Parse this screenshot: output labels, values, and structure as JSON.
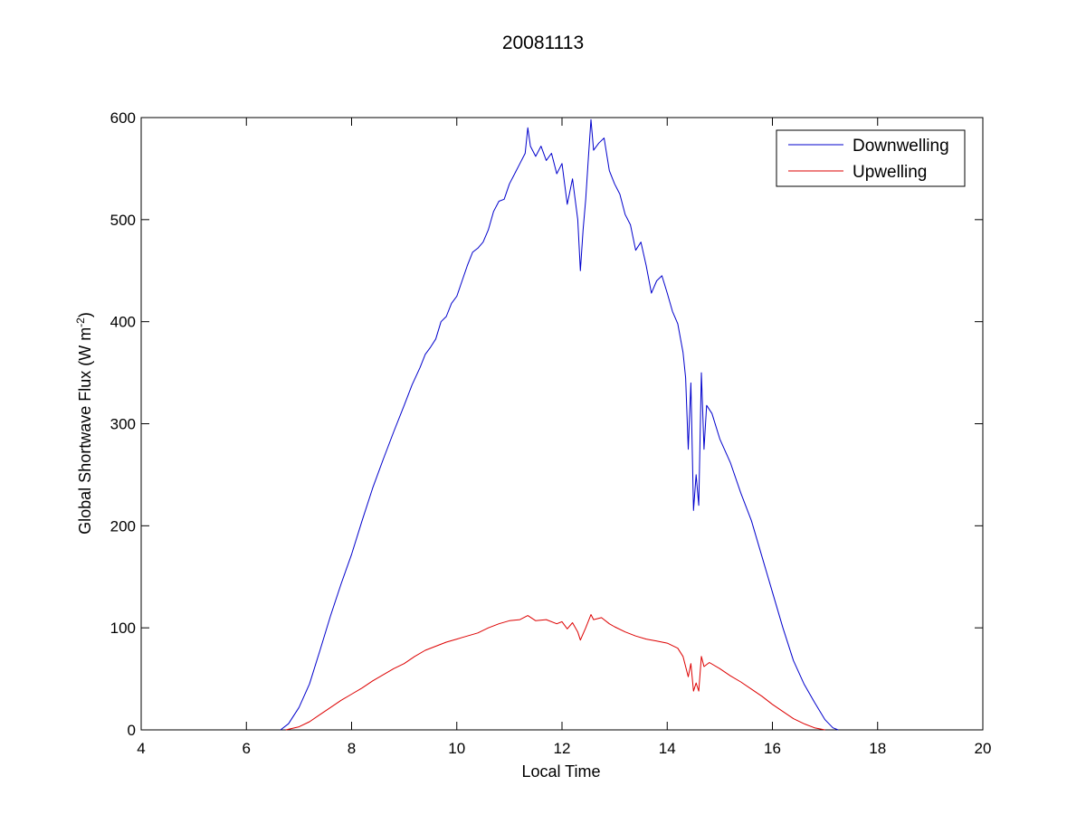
{
  "chart_data": {
    "type": "line",
    "title": "20081113",
    "xlabel": "Local Time",
    "ylabel": {
      "main": "Global Shortwave Flux (W m",
      "superscript": "-2",
      "close": ")"
    },
    "xlim": [
      4,
      20
    ],
    "ylim": [
      0,
      600
    ],
    "xticks": [
      4,
      6,
      8,
      10,
      12,
      14,
      16,
      18,
      20
    ],
    "yticks": [
      0,
      100,
      200,
      300,
      400,
      500,
      600
    ],
    "grid": false,
    "legend_position": "top-right",
    "series": [
      {
        "name": "Downwelling",
        "color": "#0000cc",
        "points": [
          [
            6.65,
            0
          ],
          [
            6.8,
            6
          ],
          [
            7.0,
            22
          ],
          [
            7.2,
            45
          ],
          [
            7.4,
            78
          ],
          [
            7.6,
            112
          ],
          [
            7.8,
            143
          ],
          [
            8.0,
            172
          ],
          [
            8.2,
            205
          ],
          [
            8.4,
            237
          ],
          [
            8.6,
            265
          ],
          [
            8.8,
            292
          ],
          [
            9.0,
            318
          ],
          [
            9.15,
            338
          ],
          [
            9.3,
            355
          ],
          [
            9.4,
            368
          ],
          [
            9.5,
            375
          ],
          [
            9.6,
            383
          ],
          [
            9.7,
            400
          ],
          [
            9.8,
            405
          ],
          [
            9.9,
            418
          ],
          [
            10.0,
            425
          ],
          [
            10.1,
            440
          ],
          [
            10.2,
            455
          ],
          [
            10.3,
            468
          ],
          [
            10.4,
            472
          ],
          [
            10.5,
            478
          ],
          [
            10.6,
            490
          ],
          [
            10.7,
            508
          ],
          [
            10.8,
            518
          ],
          [
            10.9,
            520
          ],
          [
            11.0,
            535
          ],
          [
            11.1,
            545
          ],
          [
            11.2,
            555
          ],
          [
            11.3,
            565
          ],
          [
            11.35,
            590
          ],
          [
            11.4,
            572
          ],
          [
            11.5,
            562
          ],
          [
            11.6,
            572
          ],
          [
            11.7,
            558
          ],
          [
            11.8,
            565
          ],
          [
            11.9,
            545
          ],
          [
            12.0,
            555
          ],
          [
            12.1,
            515
          ],
          [
            12.2,
            540
          ],
          [
            12.3,
            500
          ],
          [
            12.35,
            450
          ],
          [
            12.4,
            490
          ],
          [
            12.45,
            520
          ],
          [
            12.5,
            560
          ],
          [
            12.55,
            598
          ],
          [
            12.6,
            568
          ],
          [
            12.7,
            575
          ],
          [
            12.8,
            580
          ],
          [
            12.9,
            548
          ],
          [
            13.0,
            535
          ],
          [
            13.1,
            525
          ],
          [
            13.2,
            505
          ],
          [
            13.3,
            495
          ],
          [
            13.4,
            470
          ],
          [
            13.5,
            478
          ],
          [
            13.6,
            455
          ],
          [
            13.7,
            428
          ],
          [
            13.8,
            440
          ],
          [
            13.9,
            445
          ],
          [
            14.0,
            428
          ],
          [
            14.1,
            410
          ],
          [
            14.2,
            398
          ],
          [
            14.3,
            370
          ],
          [
            14.35,
            345
          ],
          [
            14.4,
            275
          ],
          [
            14.45,
            340
          ],
          [
            14.5,
            215
          ],
          [
            14.55,
            250
          ],
          [
            14.6,
            220
          ],
          [
            14.65,
            350
          ],
          [
            14.7,
            275
          ],
          [
            14.75,
            318
          ],
          [
            14.85,
            310
          ],
          [
            15.0,
            285
          ],
          [
            15.2,
            262
          ],
          [
            15.4,
            232
          ],
          [
            15.6,
            205
          ],
          [
            15.8,
            170
          ],
          [
            16.0,
            135
          ],
          [
            16.2,
            100
          ],
          [
            16.4,
            68
          ],
          [
            16.6,
            45
          ],
          [
            16.8,
            27
          ],
          [
            17.0,
            10
          ],
          [
            17.15,
            2
          ],
          [
            17.25,
            0
          ]
        ]
      },
      {
        "name": "Upwelling",
        "color": "#dd0000",
        "points": [
          [
            6.75,
            0
          ],
          [
            7.0,
            3
          ],
          [
            7.2,
            8
          ],
          [
            7.4,
            15
          ],
          [
            7.6,
            22
          ],
          [
            7.8,
            29
          ],
          [
            8.0,
            35
          ],
          [
            8.2,
            41
          ],
          [
            8.4,
            48
          ],
          [
            8.6,
            54
          ],
          [
            8.8,
            60
          ],
          [
            9.0,
            65
          ],
          [
            9.2,
            72
          ],
          [
            9.4,
            78
          ],
          [
            9.6,
            82
          ],
          [
            9.8,
            86
          ],
          [
            10.0,
            89
          ],
          [
            10.2,
            92
          ],
          [
            10.4,
            95
          ],
          [
            10.6,
            100
          ],
          [
            10.8,
            104
          ],
          [
            11.0,
            107
          ],
          [
            11.2,
            108
          ],
          [
            11.35,
            112
          ],
          [
            11.5,
            107
          ],
          [
            11.7,
            108
          ],
          [
            11.9,
            104
          ],
          [
            12.0,
            106
          ],
          [
            12.1,
            99
          ],
          [
            12.2,
            105
          ],
          [
            12.3,
            96
          ],
          [
            12.35,
            88
          ],
          [
            12.45,
            100
          ],
          [
            12.55,
            113
          ],
          [
            12.6,
            108
          ],
          [
            12.75,
            110
          ],
          [
            12.9,
            104
          ],
          [
            13.0,
            101
          ],
          [
            13.2,
            96
          ],
          [
            13.4,
            92
          ],
          [
            13.6,
            89
          ],
          [
            13.8,
            87
          ],
          [
            14.0,
            85
          ],
          [
            14.2,
            80
          ],
          [
            14.3,
            72
          ],
          [
            14.4,
            52
          ],
          [
            14.45,
            65
          ],
          [
            14.5,
            38
          ],
          [
            14.55,
            46
          ],
          [
            14.6,
            38
          ],
          [
            14.65,
            72
          ],
          [
            14.7,
            62
          ],
          [
            14.8,
            66
          ],
          [
            15.0,
            60
          ],
          [
            15.2,
            53
          ],
          [
            15.4,
            47
          ],
          [
            15.6,
            40
          ],
          [
            15.8,
            33
          ],
          [
            16.0,
            25
          ],
          [
            16.2,
            18
          ],
          [
            16.4,
            11
          ],
          [
            16.6,
            6
          ],
          [
            16.8,
            2
          ],
          [
            17.0,
            0
          ]
        ]
      }
    ]
  }
}
